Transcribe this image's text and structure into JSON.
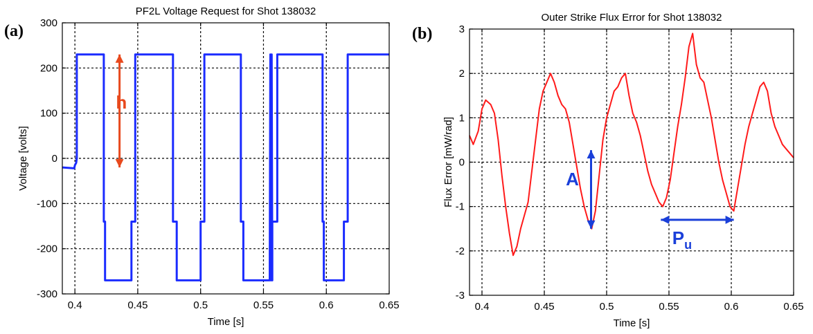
{
  "chart_data": [
    {
      "id": "a",
      "type": "line",
      "panel_label": "(a)",
      "title": "PF2L Voltage Request for Shot 138032",
      "xlabel": "Time [s]",
      "ylabel": "Voltage [volts]",
      "xlim": [
        0.39,
        0.65
      ],
      "ylim": [
        -300,
        300
      ],
      "xticks": [
        0.4,
        0.45,
        0.5,
        0.55,
        0.6,
        0.65
      ],
      "xtick_labels": [
        "0.4",
        "0.45",
        "0.5",
        "0.55",
        "0.6",
        "0.65"
      ],
      "yticks": [
        -300,
        -200,
        -100,
        0,
        100,
        200,
        300
      ],
      "ytick_labels": [
        "-300",
        "-200",
        "-100",
        "0",
        "100",
        "200",
        "300"
      ],
      "grid": true,
      "series": [
        {
          "color": "#1a2bff",
          "x": [
            0.39,
            0.3995,
            0.4,
            0.401,
            0.4015,
            0.4015,
            0.423,
            0.423,
            0.424,
            0.424,
            0.445,
            0.445,
            0.448,
            0.448,
            0.478,
            0.478,
            0.481,
            0.481,
            0.5,
            0.5,
            0.503,
            0.503,
            0.532,
            0.532,
            0.534,
            0.534,
            0.555,
            0.5555,
            0.556,
            0.5565,
            0.557,
            0.557,
            0.561,
            0.561,
            0.597,
            0.597,
            0.598,
            0.598,
            0.614,
            0.614,
            0.617,
            0.617,
            0.65
          ],
          "y": [
            -20,
            -22,
            -15,
            -10,
            0,
            230,
            230,
            -140,
            -140,
            -270,
            -270,
            -140,
            -140,
            230,
            230,
            -140,
            -140,
            -270,
            -270,
            -140,
            -140,
            230,
            230,
            -140,
            -140,
            -270,
            -270,
            230,
            -270,
            230,
            -270,
            -140,
            -140,
            230,
            230,
            -140,
            -140,
            -270,
            -270,
            -140,
            -140,
            230,
            230
          ]
        }
      ],
      "annotations": [
        {
          "text": "h",
          "color": "#e8491d",
          "x": 0.437,
          "y": 110
        },
        {
          "type": "double-arrow",
          "color": "#e8491d",
          "x1": 0.4355,
          "y1": 230,
          "x2": 0.4355,
          "y2": -20
        }
      ]
    },
    {
      "id": "b",
      "type": "line",
      "panel_label": "(b)",
      "title": "Outer Strike Flux Error for Shot 138032",
      "xlabel": "Time [s]",
      "ylabel": "Flux Error [mW/rad]",
      "xlim": [
        0.39,
        0.65
      ],
      "ylim": [
        -3,
        3
      ],
      "xticks": [
        0.4,
        0.45,
        0.5,
        0.55,
        0.6,
        0.65
      ],
      "xtick_labels": [
        "0.4",
        "0.45",
        "0.5",
        "0.55",
        "0.6",
        "0.65"
      ],
      "yticks": [
        -3,
        -2,
        -1,
        0,
        1,
        2,
        3
      ],
      "ytick_labels": [
        "-3",
        "-2",
        "-1",
        "0",
        "1",
        "2",
        "3"
      ],
      "grid": true,
      "series": [
        {
          "color": "#ff1a1a",
          "x": [
            0.39,
            0.393,
            0.397,
            0.4,
            0.403,
            0.407,
            0.41,
            0.413,
            0.416,
            0.419,
            0.422,
            0.425,
            0.428,
            0.431,
            0.434,
            0.437,
            0.44,
            0.443,
            0.446,
            0.449,
            0.452,
            0.455,
            0.458,
            0.461,
            0.464,
            0.467,
            0.47,
            0.473,
            0.476,
            0.479,
            0.482,
            0.485,
            0.488,
            0.491,
            0.494,
            0.497,
            0.5,
            0.503,
            0.506,
            0.509,
            0.512,
            0.515,
            0.518,
            0.521,
            0.524,
            0.527,
            0.53,
            0.533,
            0.536,
            0.539,
            0.542,
            0.545,
            0.548,
            0.551,
            0.554,
            0.557,
            0.56,
            0.563,
            0.566,
            0.569,
            0.572,
            0.575,
            0.578,
            0.581,
            0.584,
            0.587,
            0.59,
            0.593,
            0.596,
            0.599,
            0.602,
            0.605,
            0.608,
            0.611,
            0.614,
            0.617,
            0.62,
            0.623,
            0.626,
            0.629,
            0.632,
            0.635,
            0.638,
            0.641,
            0.644,
            0.647,
            0.65
          ],
          "y": [
            0.6,
            0.4,
            0.7,
            1.2,
            1.4,
            1.3,
            1.1,
            0.5,
            -0.3,
            -1.0,
            -1.6,
            -2.1,
            -1.9,
            -1.5,
            -1.2,
            -0.9,
            -0.2,
            0.5,
            1.2,
            1.6,
            1.8,
            2.0,
            1.8,
            1.5,
            1.3,
            1.2,
            0.9,
            0.4,
            -0.1,
            -0.6,
            -1.0,
            -1.3,
            -1.5,
            -1.1,
            -0.3,
            0.5,
            1.0,
            1.3,
            1.6,
            1.7,
            1.9,
            2.0,
            1.5,
            1.1,
            0.9,
            0.6,
            0.2,
            -0.2,
            -0.5,
            -0.7,
            -0.9,
            -1.0,
            -0.8,
            -0.4,
            0.2,
            0.8,
            1.3,
            1.9,
            2.6,
            2.9,
            2.2,
            1.9,
            1.8,
            1.4,
            1.0,
            0.5,
            0.0,
            -0.4,
            -0.7,
            -1.0,
            -1.1,
            -0.6,
            -0.1,
            0.4,
            0.8,
            1.1,
            1.4,
            1.7,
            1.8,
            1.6,
            1.1,
            0.8,
            0.6,
            0.4,
            0.3,
            0.2,
            0.1
          ]
        }
      ],
      "annotations": [
        {
          "text": "A",
          "color": "#1a3fd9",
          "x": 0.4725,
          "y": -0.52
        },
        {
          "type": "double-arrow",
          "color": "#1a3fd9",
          "x1": 0.4875,
          "y1": 0.27,
          "x2": 0.4875,
          "y2": -1.5
        },
        {
          "text": "P",
          "subtext": "u",
          "color": "#1a3fd9",
          "x": 0.5605,
          "y": -1.85
        },
        {
          "type": "double-arrow",
          "color": "#1a3fd9",
          "x1": 0.5435,
          "y1": -1.3,
          "x2": 0.602,
          "y2": -1.3
        }
      ]
    }
  ]
}
